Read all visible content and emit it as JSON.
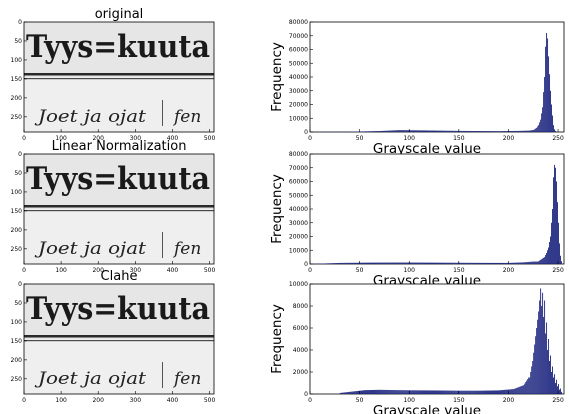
{
  "chart_data": [
    {
      "type": "image",
      "title": "original",
      "image_text": [
        "Tyys=kuuta",
        "Joet ja ojat",
        "fen"
      ],
      "x_ticks": [
        "0",
        "100",
        "200",
        "300",
        "400",
        "500"
      ],
      "y_ticks": [
        "0",
        "50",
        "100",
        "150",
        "200",
        "250"
      ]
    },
    {
      "type": "bar",
      "title": "",
      "xlabel": "Grayscale value",
      "ylabel": "Frequency",
      "xlim": [
        0,
        256
      ],
      "ylim": [
        0,
        80000
      ],
      "x_ticks": [
        "0",
        "50",
        "100",
        "150",
        "200",
        "250"
      ],
      "y_ticks": [
        "0",
        "10000",
        "20000",
        "30000",
        "40000",
        "50000",
        "60000",
        "70000",
        "80000"
      ],
      "color": "#1a237e",
      "background": [
        [
          10,
          150
        ],
        [
          40,
          220
        ],
        [
          70,
          700
        ],
        [
          90,
          1400
        ],
        [
          110,
          1200
        ],
        [
          130,
          1000
        ],
        [
          150,
          800
        ],
        [
          170,
          700
        ],
        [
          190,
          600
        ],
        [
          210,
          800
        ],
        [
          220,
          1000
        ],
        [
          225,
          1500
        ]
      ],
      "peak": [
        [
          226,
          2000
        ],
        [
          228,
          3000
        ],
        [
          230,
          5000
        ],
        [
          232,
          9000
        ],
        [
          234,
          18000
        ],
        [
          236,
          40000
        ],
        [
          237,
          62000
        ],
        [
          238,
          72000
        ],
        [
          239,
          68000
        ],
        [
          240,
          55000
        ],
        [
          241,
          42000
        ],
        [
          242,
          30000
        ],
        [
          243,
          20000
        ],
        [
          244,
          12000
        ],
        [
          245,
          5000
        ],
        [
          246,
          2000
        ],
        [
          247,
          800
        ]
      ]
    },
    {
      "type": "image",
      "title": "Linear Normalization",
      "image_text": [
        "Tyys=kuuta",
        "Joet ja ojat",
        "fen"
      ],
      "x_ticks": [
        "0",
        "100",
        "200",
        "300",
        "400",
        "500"
      ],
      "y_ticks": [
        "0",
        "50",
        "100",
        "150",
        "200",
        "250"
      ]
    },
    {
      "type": "bar",
      "title": "",
      "xlabel": "Grayscale value",
      "ylabel": "Frequency",
      "xlim": [
        0,
        256
      ],
      "ylim": [
        0,
        80000
      ],
      "x_ticks": [
        "0",
        "50",
        "100",
        "150",
        "200",
        "250"
      ],
      "y_ticks": [
        "0",
        "10000",
        "20000",
        "30000",
        "40000",
        "50000",
        "60000",
        "70000",
        "80000"
      ],
      "color": "#1a237e",
      "background": [
        [
          5,
          150
        ],
        [
          30,
          800
        ],
        [
          60,
          1000
        ],
        [
          90,
          1100
        ],
        [
          120,
          1000
        ],
        [
          150,
          900
        ],
        [
          180,
          800
        ],
        [
          200,
          800
        ],
        [
          215,
          1200
        ],
        [
          225,
          1800
        ]
      ],
      "peak": [
        [
          230,
          2000
        ],
        [
          232,
          3000
        ],
        [
          234,
          4000
        ],
        [
          236,
          5000
        ],
        [
          238,
          8000
        ],
        [
          240,
          12000
        ],
        [
          242,
          20000
        ],
        [
          244,
          40000
        ],
        [
          245,
          63000
        ],
        [
          246,
          72000
        ],
        [
          247,
          70000
        ],
        [
          248,
          60000
        ],
        [
          249,
          45000
        ],
        [
          250,
          30000
        ],
        [
          251,
          15000
        ],
        [
          252,
          6000
        ],
        [
          253,
          2000
        ]
      ]
    },
    {
      "type": "image",
      "title": "Clahe",
      "image_text": [
        "Tyys=kuuta",
        "Joet ja ojat",
        "fen"
      ],
      "x_ticks": [
        "0",
        "100",
        "200",
        "300",
        "400",
        "500"
      ],
      "y_ticks": [
        "0",
        "50",
        "100",
        "150",
        "200",
        "250"
      ]
    },
    {
      "type": "bar",
      "title": "",
      "xlabel": "Grayscale value",
      "ylabel": "Frequency",
      "xlim": [
        0,
        256
      ],
      "ylim": [
        0,
        10000
      ],
      "x_ticks": [
        "0",
        "50",
        "100",
        "150",
        "200",
        "250"
      ],
      "y_ticks": [
        "0",
        "2000",
        "4000",
        "6000",
        "8000",
        "10000"
      ],
      "color": "#1a237e",
      "background": [
        [
          30,
          100
        ],
        [
          45,
          250
        ],
        [
          55,
          350
        ],
        [
          70,
          380
        ],
        [
          90,
          350
        ],
        [
          110,
          330
        ],
        [
          130,
          320
        ],
        [
          150,
          300
        ],
        [
          170,
          300
        ],
        [
          190,
          330
        ],
        [
          205,
          450
        ],
        [
          215,
          800
        ],
        [
          220,
          1500
        ]
      ],
      "peak": [
        [
          222,
          2000
        ],
        [
          224,
          3000
        ],
        [
          226,
          4500
        ],
        [
          228,
          6000
        ],
        [
          230,
          7500
        ],
        [
          231,
          8500
        ],
        [
          232,
          9600
        ],
        [
          233,
          8000
        ],
        [
          234,
          9200
        ],
        [
          235,
          7000
        ],
        [
          236,
          8500
        ],
        [
          237,
          5500
        ],
        [
          238,
          6500
        ],
        [
          239,
          4000
        ],
        [
          240,
          5000
        ],
        [
          241,
          3000
        ],
        [
          242,
          3500
        ],
        [
          243,
          2000
        ],
        [
          244,
          2500
        ],
        [
          245,
          1500
        ],
        [
          246,
          1800
        ],
        [
          247,
          1000
        ],
        [
          248,
          1300
        ],
        [
          249,
          700
        ],
        [
          250,
          900
        ],
        [
          251,
          400
        ],
        [
          252,
          500
        ],
        [
          253,
          200
        ]
      ]
    }
  ]
}
